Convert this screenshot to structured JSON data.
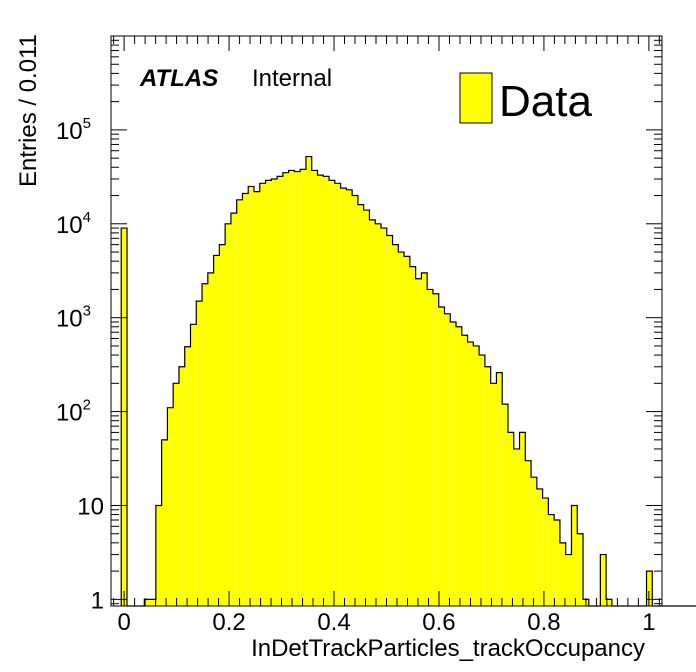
{
  "chart_data": {
    "type": "bar",
    "style": "histogram (step), yellow fill, black outline",
    "xlabel": "InDetTrackParticles_trackOccupancy",
    "ylabel": "Entries / 0.011",
    "label_bold": "ATLAS",
    "label_normal": "Internal",
    "legend": "Data",
    "legend_position": "top-right",
    "fill_color": "#ffff00",
    "line_color": "#000000",
    "x_range": [
      -0.025,
      1.025
    ],
    "y_log": true,
    "y_range": [
      0.85,
      1000000
    ],
    "x_ticks": [
      "0",
      "0.2",
      "0.4",
      "0.6",
      "0.8",
      "1"
    ],
    "x_tick_values": [
      0,
      0.2,
      0.4,
      0.6,
      0.8,
      1
    ],
    "y_ticks": [
      "1",
      "10",
      "10^2",
      "10^3",
      "10^4",
      "10^5"
    ],
    "y_tick_values": [
      1,
      10,
      100,
      1000,
      10000,
      100000
    ],
    "bin_start": -0.0055,
    "bin_width": 0.011,
    "values": [
      9000,
      0,
      0,
      0,
      1,
      1,
      10,
      50,
      110,
      200,
      300,
      490,
      850,
      1500,
      2300,
      3000,
      4600,
      6000,
      10000,
      13000,
      18000,
      21000,
      25000,
      22000,
      27000,
      29000,
      30000,
      32000,
      35000,
      37000,
      36000,
      38000,
      52000,
      37000,
      33000,
      32000,
      29000,
      27000,
      24000,
      23000,
      20000,
      16000,
      14000,
      11000,
      10000,
      9000,
      7500,
      6000,
      5000,
      4500,
      3500,
      2600,
      3000,
      2000,
      1800,
      1300,
      1100,
      900,
      800,
      650,
      550,
      500,
      400,
      300,
      200,
      260,
      120,
      60,
      40,
      60,
      30,
      20,
      15,
      12,
      8,
      7,
      4,
      3,
      10,
      5,
      1,
      0,
      0,
      3,
      1,
      0,
      0,
      0,
      0,
      0,
      0,
      2,
      0,
      0,
      0,
      0,
      0,
      0,
      0,
      0,
      0,
      0,
      0,
      0
    ]
  }
}
